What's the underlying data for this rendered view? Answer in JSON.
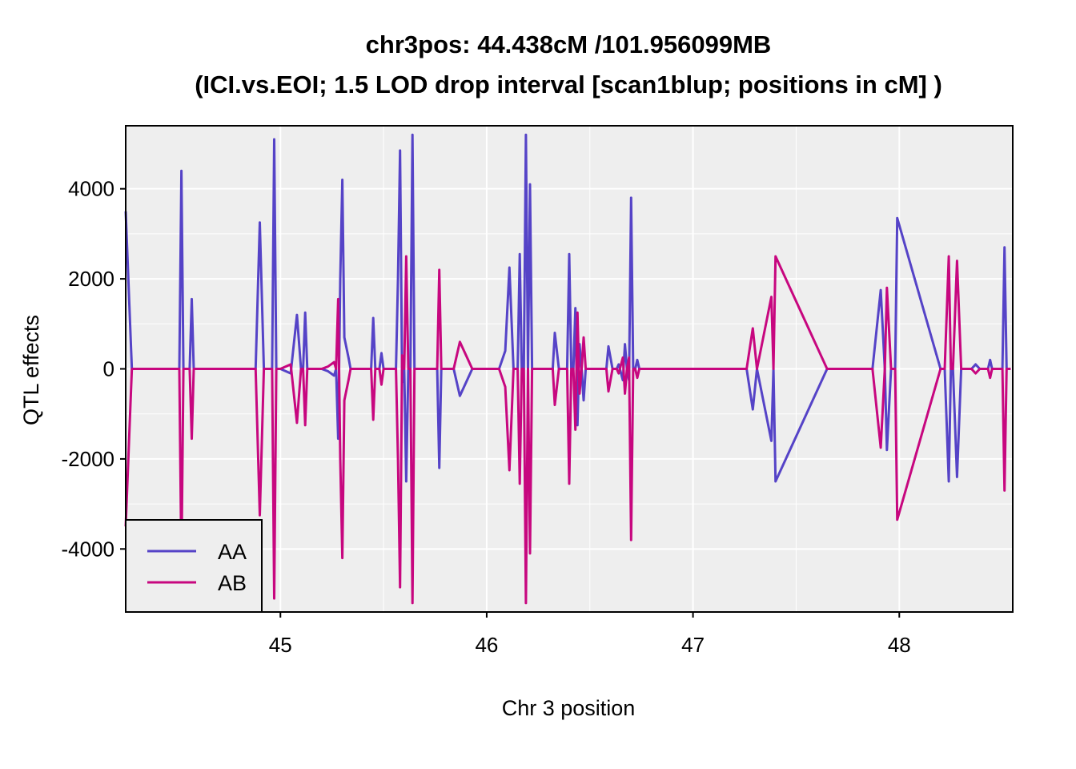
{
  "chart_data": {
    "type": "line",
    "title": "chr3pos: 44.438cM /101.956099MB",
    "subtitle": "(ICI.vs.EOI; 1.5 LOD drop interval [scan1blup; positions in cM] )",
    "xlabel": "Chr 3 position",
    "ylabel": "QTL effects",
    "xlim": [
      44.25,
      48.55
    ],
    "ylim": [
      -5400,
      5400
    ],
    "xticks": [
      45,
      46,
      47,
      48
    ],
    "yticks": [
      -4000,
      -2000,
      0,
      2000,
      4000
    ],
    "grid": true,
    "legend_position": "bottom-left",
    "colors": {
      "AA": "#5543c7",
      "AB": "#c7077f",
      "panel": "#eeeeee",
      "grid": "#ffffff"
    },
    "series": [
      {
        "name": "AA"
      },
      {
        "name": "AB"
      }
    ],
    "note_ab": "AB values are the negative of AA at each position",
    "x": [
      44.25,
      44.28,
      44.51,
      44.52,
      44.53,
      44.56,
      44.57,
      44.58,
      44.88,
      44.9,
      44.92,
      44.96,
      44.97,
      44.98,
      45.0,
      45.05,
      45.08,
      45.1,
      45.11,
      45.12,
      45.13,
      45.2,
      45.23,
      45.26,
      45.27,
      45.28,
      45.29,
      45.3,
      45.31,
      45.33,
      45.34,
      45.36,
      45.38,
      45.44,
      45.45,
      45.46,
      45.48,
      45.49,
      45.5,
      45.56,
      45.57,
      45.58,
      45.59,
      45.6,
      45.61,
      45.62,
      45.63,
      45.64,
      45.65,
      45.66,
      45.67,
      45.68,
      45.76,
      45.77,
      45.78,
      45.84,
      45.87,
      45.93,
      46.06,
      46.09,
      46.11,
      46.13,
      46.15,
      46.16,
      46.17,
      46.18,
      46.19,
      46.2,
      46.21,
      46.22,
      46.23,
      46.25,
      46.32,
      46.33,
      46.35,
      46.39,
      46.4,
      46.41,
      46.42,
      46.43,
      46.44,
      46.45,
      46.46,
      46.47,
      46.48,
      46.49,
      46.5,
      46.58,
      46.59,
      46.61,
      46.63,
      46.64,
      46.66,
      46.67,
      46.68,
      46.69,
      46.7,
      46.71,
      46.72,
      46.73,
      46.74,
      47.24,
      47.26,
      47.29,
      47.31,
      47.38,
      47.39,
      47.4,
      47.65,
      47.69,
      47.72,
      47.82,
      47.87,
      47.91,
      47.93,
      47.94,
      47.96,
      47.98,
      47.99,
      48.2,
      48.21,
      48.22,
      48.24,
      48.25,
      48.26,
      48.28,
      48.3,
      48.32,
      48.33,
      48.35,
      48.37,
      48.39,
      48.41,
      48.42,
      48.43,
      48.44,
      48.45,
      48.46,
      48.47,
      48.48,
      48.49,
      48.5,
      48.51,
      48.52,
      48.53,
      48.54,
      48.55
    ],
    "aa": [
      3500,
      0,
      0,
      4400,
      0,
      0,
      1550,
      0,
      0,
      3250,
      0,
      0,
      5100,
      0,
      0,
      -100,
      1200,
      0,
      0,
      1250,
      0,
      0,
      -50,
      -150,
      0,
      -1550,
      2000,
      4200,
      700,
      250,
      0,
      0,
      0,
      0,
      1130,
      0,
      0,
      350,
      0,
      0,
      2000,
      4850,
      -300,
      0,
      -2500,
      0,
      0,
      5200,
      0,
      0,
      0,
      0,
      0,
      -2200,
      0,
      0,
      -600,
      0,
      0,
      400,
      2250,
      0,
      0,
      2550,
      0,
      0,
      5200,
      0,
      4100,
      0,
      0,
      0,
      0,
      800,
      0,
      0,
      2550,
      0,
      0,
      1350,
      -1250,
      550,
      0,
      -700,
      0,
      0,
      0,
      0,
      500,
      0,
      0,
      100,
      -250,
      550,
      0,
      -250,
      3800,
      0,
      0,
      200,
      0,
      0,
      0,
      -900,
      0,
      -1600,
      0,
      -2500,
      0,
      0,
      0,
      0,
      0,
      1750,
      0,
      -1800,
      0,
      0,
      3350,
      0,
      0,
      0,
      -2500,
      0,
      0,
      -2400,
      0,
      0,
      0,
      0,
      100,
      0,
      0,
      0,
      0,
      200,
      0,
      0,
      0,
      0,
      0,
      0,
      2700,
      0,
      0,
      0
    ],
    "ab": [
      -3500,
      0,
      0,
      -4400,
      0,
      0,
      -1550,
      0,
      0,
      -3250,
      0,
      0,
      -5100,
      0,
      0,
      100,
      -1200,
      0,
      0,
      -1250,
      0,
      0,
      50,
      150,
      0,
      1550,
      -2000,
      -4200,
      -700,
      -250,
      0,
      0,
      0,
      0,
      -1130,
      0,
      0,
      -350,
      0,
      0,
      -2000,
      -4850,
      300,
      0,
      2500,
      0,
      0,
      -5200,
      0,
      0,
      0,
      0,
      0,
      2200,
      0,
      0,
      600,
      0,
      0,
      -400,
      -2250,
      0,
      0,
      -2550,
      0,
      0,
      -5200,
      0,
      -4100,
      0,
      0,
      0,
      0,
      -800,
      0,
      0,
      -2550,
      0,
      0,
      -1350,
      1250,
      -550,
      0,
      700,
      0,
      0,
      0,
      0,
      -500,
      0,
      0,
      -100,
      250,
      -550,
      0,
      250,
      -3800,
      0,
      0,
      -200,
      0,
      0,
      0,
      900,
      0,
      1600,
      0,
      2500,
      0,
      0,
      0,
      0,
      0,
      -1750,
      0,
      1800,
      0,
      0,
      -3350,
      0,
      0,
      0,
      2500,
      0,
      0,
      2400,
      0,
      0,
      0,
      0,
      -100,
      0,
      0,
      0,
      0,
      -200,
      0,
      0,
      0,
      0,
      0,
      0,
      -2700,
      0,
      0,
      0
    ]
  }
}
